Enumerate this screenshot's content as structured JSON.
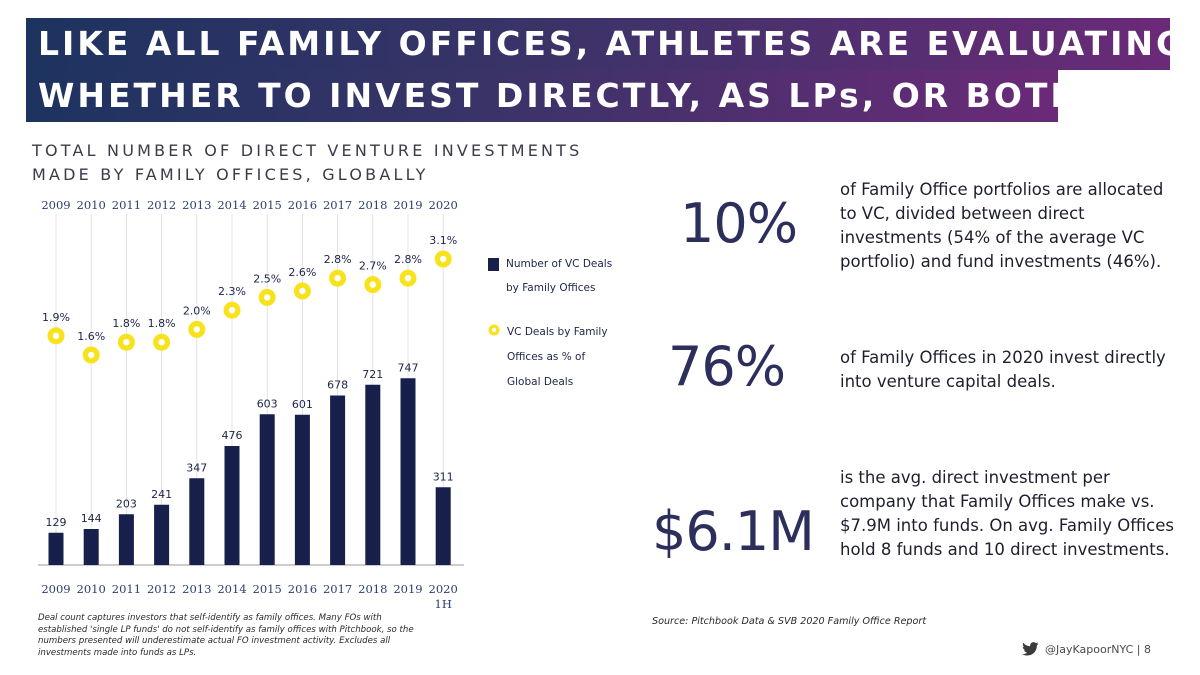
{
  "header": {
    "line1": "LIKE ALL FAMILY OFFICES, ATHLETES ARE EVALUATING",
    "line2": "WHETHER TO INVEST DIRECTLY, AS LPs, OR BOTH"
  },
  "chart_title": {
    "line1": "TOTAL NUMBER OF DIRECT VENTURE INVESTMENTS",
    "line2": "MADE BY FAMILY OFFICES, GLOBALLY"
  },
  "chart_data": {
    "type": "bar",
    "categories": [
      "2009",
      "2010",
      "2011",
      "2012",
      "2013",
      "2014",
      "2015",
      "2016",
      "2017",
      "2018",
      "2019",
      "2020"
    ],
    "bottom_tick_labels": [
      "2009",
      "2010",
      "2011",
      "2012",
      "2013",
      "2014",
      "2015",
      "2016",
      "2017",
      "2018",
      "2019",
      "2020"
    ],
    "bottom_tick_suffix": [
      "",
      "",
      "",
      "",
      "",
      "",
      "",
      "",
      "",
      "",
      "",
      "1H"
    ],
    "series": [
      {
        "name": "Number of VC Deals by Family Offices",
        "legend_lines": [
          "Number of VC Deals",
          "by Family Offices"
        ],
        "type": "bar",
        "color": "#16204a",
        "values": [
          129,
          144,
          203,
          241,
          347,
          476,
          603,
          601,
          678,
          721,
          747,
          311
        ],
        "labels": [
          "129",
          "144",
          "203",
          "241",
          "347",
          "476",
          "603",
          "601",
          "678",
          "721",
          "747",
          "311"
        ]
      },
      {
        "name": "VC Deals by Family Offices as % of Global Deals",
        "legend_lines": [
          "VC Deals by Family",
          "Offices as % of",
          "Global Deals"
        ],
        "type": "scatter",
        "color": "#f7e21b",
        "values": [
          1.9,
          1.6,
          1.8,
          1.8,
          2.0,
          2.3,
          2.5,
          2.6,
          2.8,
          2.7,
          2.8,
          3.1
        ],
        "labels": [
          "1.9%",
          "1.6%",
          "1.8%",
          "1.8%",
          "2.0%",
          "2.3%",
          "2.5%",
          "2.6%",
          "2.8%",
          "2.7%",
          "2.8%",
          "3.1%"
        ]
      }
    ],
    "grid": false,
    "legend_position": "right"
  },
  "stats": [
    {
      "value": "10%",
      "text": "of Family Office portfolios are allocated to VC, divided between direct investments (54% of the average VC portfolio) and fund investments (46%)."
    },
    {
      "value": "76%",
      "text": "of Family Offices in 2020 invest directly into venture capital deals."
    },
    {
      "value": "$6.1M",
      "text": "is the avg. direct investment per company that Family Offices make vs. $7.9M into funds. On avg. Family Offices hold 8 funds and 10 direct investments."
    }
  ],
  "footnote": "Deal count captures investors that self-identify as family offices. Many FOs with established 'single LP funds' do not self-identify as family offices with Pitchbook, so the numbers presented will underestimate actual FO investment activity. Excludes all investments made into funds as LPs.",
  "source": "Source: Pitchbook Data & SVB 2020 Family Office Report",
  "footer": {
    "handle": "@JayKapoorNYC | 8",
    "icon": "twitter-bird-icon",
    "icon_color": "#3a3a3a"
  }
}
